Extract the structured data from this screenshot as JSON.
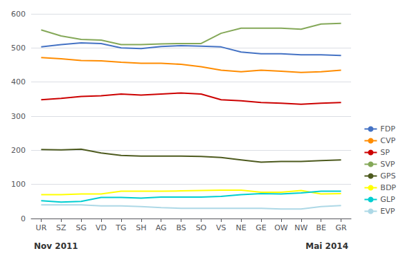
{
  "chart_data": {
    "type": "line",
    "categories": [
      "UR",
      "SZ",
      "SG",
      "VD",
      "TG",
      "SH",
      "AG",
      "BS",
      "SO",
      "VS",
      "NE",
      "GE",
      "OW",
      "NW",
      "BE",
      "GR"
    ],
    "series": [
      {
        "name": "FDP",
        "color": "#4472C4",
        "values": [
          503,
          510,
          515,
          513,
          500,
          498,
          504,
          507,
          505,
          503,
          488,
          483,
          483,
          480,
          480,
          478
        ]
      },
      {
        "name": "CVP",
        "color": "#FF8C00",
        "values": [
          472,
          468,
          463,
          462,
          458,
          455,
          455,
          452,
          445,
          435,
          430,
          435,
          432,
          428,
          430,
          435
        ]
      },
      {
        "name": "SP",
        "color": "#CC0000",
        "values": [
          348,
          352,
          358,
          360,
          365,
          362,
          365,
          368,
          365,
          348,
          345,
          340,
          338,
          335,
          338,
          340
        ]
      },
      {
        "name": "SVP",
        "color": "#84A858",
        "values": [
          553,
          535,
          525,
          523,
          510,
          510,
          512,
          513,
          513,
          543,
          558,
          558,
          558,
          555,
          570,
          572
        ]
      },
      {
        "name": "GPS",
        "color": "#4D5A1E",
        "values": [
          202,
          201,
          203,
          192,
          185,
          183,
          183,
          183,
          182,
          179,
          172,
          165,
          167,
          167,
          170,
          172
        ]
      },
      {
        "name": "BDP",
        "color": "#FFFF00",
        "values": [
          70,
          70,
          72,
          72,
          80,
          80,
          80,
          81,
          82,
          83,
          83,
          77,
          77,
          82,
          72,
          73
        ]
      },
      {
        "name": "GLP",
        "color": "#00CED1",
        "values": [
          52,
          48,
          50,
          62,
          62,
          60,
          63,
          63,
          63,
          65,
          70,
          73,
          72,
          75,
          80,
          80
        ]
      },
      {
        "name": "EVP",
        "color": "#ADD8E6",
        "values": [
          40,
          40,
          40,
          37,
          37,
          35,
          32,
          30,
          30,
          30,
          30,
          30,
          28,
          28,
          35,
          38
        ]
      }
    ],
    "annotations": [
      "Nov 2011",
      "Mai 2014"
    ],
    "ylim": [
      0,
      600
    ],
    "yticks": [
      0,
      100,
      200,
      300,
      400,
      500,
      600
    ],
    "grid": true,
    "legend": "right"
  }
}
